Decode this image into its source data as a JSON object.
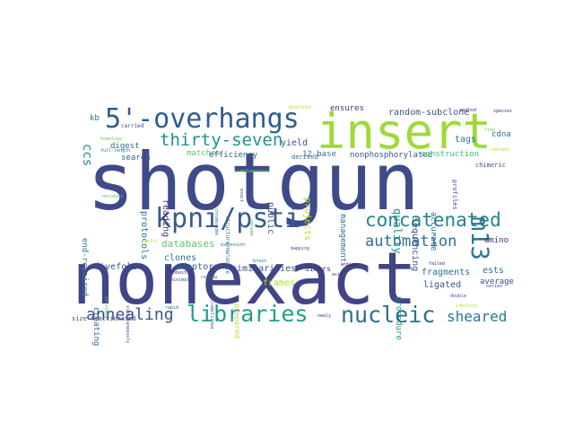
{
  "words": [
    {
      "text": "shotgun",
      "color": "#3f4a8a"
    },
    {
      "text": "nonexact",
      "color": "#414487"
    },
    {
      "text": "insert",
      "color": "#9fda3a"
    },
    {
      "text": "5'-overhangs",
      "color": "#2f5e8e"
    },
    {
      "text": "kpni/psti",
      "color": "#365c8d"
    },
    {
      "text": "libraries",
      "color": "#1fa088"
    },
    {
      "text": "nucleic",
      "color": "#2e6f8e"
    },
    {
      "text": "concatenated",
      "color": "#25848e"
    },
    {
      "text": "thirty-seven",
      "color": "#21918c"
    },
    {
      "text": "m13",
      "color": "#2a788e"
    },
    {
      "text": "automation",
      "color": "#2c728e"
    },
    {
      "text": "annealing",
      "color": "#3b528b"
    },
    {
      "text": "sheared",
      "color": "#2a788e"
    },
    {
      "text": "ccs",
      "color": "#25848e"
    },
    {
      "text": "ensures",
      "color": "#46327e"
    },
    {
      "text": "random-subclone",
      "color": "#3b528b"
    },
    {
      "text": "method",
      "color": "#472d7b"
    },
    {
      "text": "species",
      "color": "#482878"
    },
    {
      "text": "modified",
      "color": "#b5de2b"
    },
    {
      "text": "kb",
      "color": "#2c728e"
    },
    {
      "text": "carried",
      "color": "#3e4989"
    },
    {
      "text": "homology",
      "color": "#6ece58"
    },
    {
      "text": "digest",
      "color": "#31688e"
    },
    {
      "text": "search",
      "color": "#31688e"
    },
    {
      "text": "matches",
      "color": "#5ec962"
    },
    {
      "text": "efficiency",
      "color": "#355f8d"
    },
    {
      "text": "yield",
      "color": "#3b528b"
    },
    {
      "text": "12-base",
      "color": "#2d708e"
    },
    {
      "text": "nonphosphorylated",
      "color": "#39568c"
    },
    {
      "text": "tags",
      "color": "#2a788e"
    },
    {
      "text": "cdna",
      "color": "#2c728e"
    },
    {
      "text": "construction",
      "color": "#3dbc74"
    },
    {
      "text": "chimeric",
      "color": "#3b528b"
    },
    {
      "text": "derived",
      "color": "#31688e"
    },
    {
      "text": "full-length",
      "color": "#2a788e"
    },
    {
      "text": "protocols",
      "color": "#2a788e"
    },
    {
      "text": "reading",
      "color": "#46327e"
    },
    {
      "text": "public",
      "color": "#3e4989"
    },
    {
      "text": "projects",
      "color": "#b8de29"
    },
    {
      "text": "management",
      "color": "#2c728e"
    },
    {
      "text": "quality",
      "color": "#21918c"
    },
    {
      "text": "sequencing",
      "color": "#3b528b"
    },
    {
      "text": "accurate",
      "color": "#2c728e"
    },
    {
      "text": "profiles",
      "color": "#3b528b"
    },
    {
      "text": "step",
      "color": "#6ece58"
    },
    {
      "text": "contain",
      "color": "#a0da39"
    },
    {
      "text": "end-repaired",
      "color": "#2a788e"
    },
    {
      "text": "databases",
      "color": "#5ec962"
    },
    {
      "text": "clones",
      "color": "#2c728e"
    },
    {
      "text": "fivefold",
      "color": "#3b528b"
    },
    {
      "text": "adaptors",
      "color": "#355f8d"
    },
    {
      "text": "similarities",
      "color": "#3b528b"
    },
    {
      "text": "dimers",
      "color": "#46327e"
    },
    {
      "text": "amino",
      "color": "#472d7b"
    },
    {
      "text": "creating",
      "color": "#31688e"
    },
    {
      "text": "frames",
      "color": "#b5de2b"
    },
    {
      "text": "fragments",
      "color": "#2c728e"
    },
    {
      "text": "ligated",
      "color": "#3b528b"
    },
    {
      "text": "ests",
      "color": "#2a788e"
    },
    {
      "text": "average",
      "color": "#3e4989"
    },
    {
      "text": "procedure",
      "color": "#21918c"
    },
    {
      "text": "prepared",
      "color": "#b5de2b"
    },
    {
      "text": "exact",
      "color": "#3b528b"
    },
    {
      "text": "mapping",
      "color": "#3e4989"
    },
    {
      "text": "extension",
      "color": "#2c728e"
    },
    {
      "text": "entire",
      "color": "#440154"
    },
    {
      "text": "acid",
      "color": "#46327e"
    },
    {
      "text": "failed",
      "color": "#482878"
    },
    {
      "text": "double",
      "color": "#3b528b"
    },
    {
      "text": "identity",
      "color": "#b5de2b"
    },
    {
      "text": "simultaneously",
      "color": "#3e4989"
    },
    {
      "text": "strategy",
      "color": "#5ec962"
    },
    {
      "text": "robust",
      "color": "#482878"
    },
    {
      "text": "minimal",
      "color": "#3b528b"
    },
    {
      "text": "coding",
      "color": "#2c728e"
    },
    {
      "text": "accomplished",
      "color": "#39568c"
    },
    {
      "text": "complementary",
      "color": "#6ece58"
    },
    {
      "text": "chromosome",
      "color": "#2c728e"
    },
    {
      "text": "structure/molecule",
      "color": "#31688e"
    },
    {
      "text": "genome",
      "color": "#3dbc74"
    },
    {
      "text": "brain",
      "color": "#2c728e"
    },
    {
      "text": "useful",
      "color": "#b5de2b"
    },
    {
      "text": "residues",
      "color": "#5ec962"
    },
    {
      "text": "vector",
      "color": "#3e4989"
    },
    {
      "text": "rapid",
      "color": "#31688e"
    },
    {
      "text": "newly",
      "color": "#482878"
    },
    {
      "text": "size-fractionated",
      "color": "#3e4989"
    },
    {
      "text": "series",
      "color": "#3b528b"
    }
  ]
}
